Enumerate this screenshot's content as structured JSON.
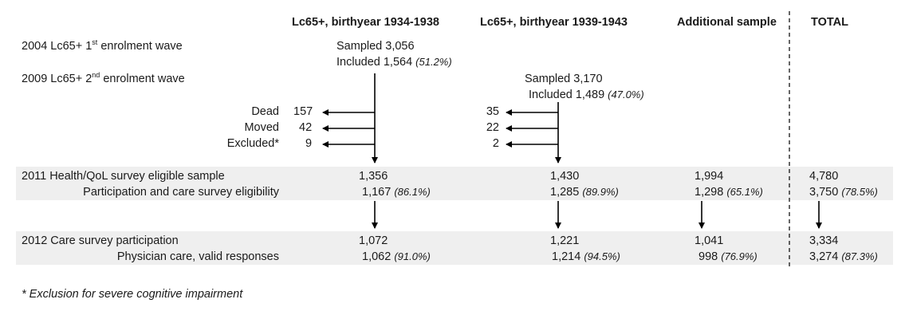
{
  "headers": {
    "cohort1": "Lc65+, birthyear 1934-1938",
    "cohort2": "Lc65+, birthyear 1939-1943",
    "additional": "Additional sample",
    "total": "TOTAL"
  },
  "waves": {
    "wave1": {
      "prefix": "2004 Lc65+ 1",
      "sup": "st",
      "suffix": " enrolment wave"
    },
    "wave2": {
      "prefix": "2009 Lc65+ 2",
      "sup": "nd",
      "suffix": " enrolment wave"
    }
  },
  "cohort1": {
    "sampled": "Sampled 3,056",
    "included": "Included 1,564",
    "included_pct": "(51.2%)",
    "attrition": [
      {
        "label": "Dead",
        "value": "157"
      },
      {
        "label": "Moved",
        "value": "42"
      },
      {
        "label": "Excluded*",
        "value": "9"
      }
    ]
  },
  "cohort2": {
    "sampled": "Sampled 3,170",
    "included": "Included 1,489",
    "included_pct": "(47.0%)",
    "attrition": [
      {
        "value": "35"
      },
      {
        "value": "22"
      },
      {
        "value": "2"
      }
    ]
  },
  "rows": {
    "eligible": {
      "label": "2011 Health/QoL survey eligible sample",
      "c1": "1,356",
      "c2": "1,430",
      "add": "1,994",
      "total": "4,780"
    },
    "participation": {
      "label": "Participation and care survey eligibility",
      "c1": "1,167",
      "c1_pct": "(86.1%)",
      "c2": "1,285",
      "c2_pct": "(89.9%)",
      "add": "1,298",
      "add_pct": "(65.1%)",
      "total": "3,750",
      "total_pct": "(78.5%)"
    },
    "care": {
      "label": "2012 Care survey participation",
      "c1": "1,072",
      "c2": "1,221",
      "add": "1,041",
      "total": "3,334"
    },
    "physician": {
      "label": "Physician care, valid responses",
      "c1": "1,062",
      "c1_pct": "(91.0%)",
      "c2": "1,214",
      "c2_pct": "(94.5%)",
      "add": "998",
      "add_pct": "(76.9%)",
      "total": "3,274",
      "total_pct": "(87.3%)"
    }
  },
  "footnote": "* Exclusion for severe cognitive impairment"
}
